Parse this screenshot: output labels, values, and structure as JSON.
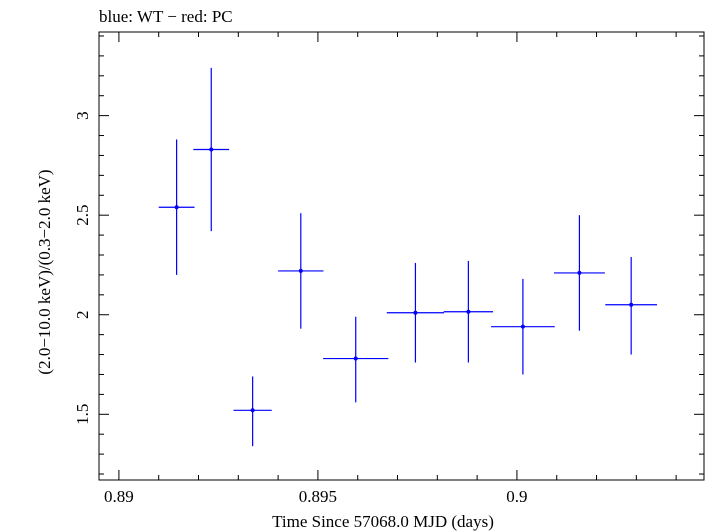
{
  "chart_data": {
    "type": "scatter",
    "title": "blue: WT − red: PC",
    "xlabel": "Time Since 57068.0 MJD (days)",
    "ylabel": "(2.0−10.0 keV)/(0.3−2.0 keV)",
    "xlim": [
      0.8895,
      0.9047
    ],
    "ylim": [
      1.17,
      3.42
    ],
    "x_ticks": [
      "0.89",
      "0.895",
      "0.9"
    ],
    "y_ticks": [
      "1.5",
      "2",
      "2.5",
      "3"
    ],
    "grid": false,
    "series": [
      {
        "color": "#0000ff",
        "points": [
          {
            "x": 0.89145,
            "xerr": 0.00045,
            "y": 2.54,
            "ylo": 2.2,
            "yhi": 2.88
          },
          {
            "x": 0.89232,
            "xerr": 0.00045,
            "y": 2.83,
            "ylo": 2.42,
            "yhi": 3.24
          },
          {
            "x": 0.89336,
            "xerr": 0.00048,
            "y": 1.52,
            "ylo": 1.34,
            "yhi": 1.69
          },
          {
            "x": 0.89457,
            "xerr": 0.00057,
            "y": 2.22,
            "ylo": 1.93,
            "yhi": 2.51
          },
          {
            "x": 0.89595,
            "xerr": 0.00082,
            "y": 1.78,
            "ylo": 1.56,
            "yhi": 1.99
          },
          {
            "x": 0.89745,
            "xerr": 0.00072,
            "y": 2.01,
            "ylo": 1.76,
            "yhi": 2.26
          },
          {
            "x": 0.89878,
            "xerr": 0.00062,
            "y": 2.015,
            "ylo": 1.76,
            "yhi": 2.27
          },
          {
            "x": 0.90015,
            "xerr": 0.0008,
            "y": 1.94,
            "ylo": 1.7,
            "yhi": 2.18
          },
          {
            "x": 0.90157,
            "xerr": 0.00064,
            "y": 2.21,
            "ylo": 1.92,
            "yhi": 2.5
          },
          {
            "x": 0.90287,
            "xerr": 0.00065,
            "y": 2.05,
            "ylo": 1.8,
            "yhi": 2.29
          }
        ]
      }
    ]
  }
}
